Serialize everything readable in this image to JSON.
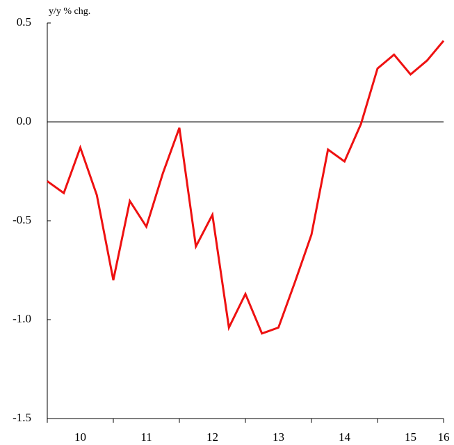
{
  "chart_data": {
    "type": "line",
    "y_axis_label": "y/y % chg.",
    "x": [
      10,
      10.25,
      10.5,
      10.75,
      11,
      11.25,
      11.5,
      11.75,
      12,
      12.25,
      12.5,
      12.75,
      13,
      13.25,
      13.5,
      13.75,
      14,
      14.25,
      14.5,
      14.75,
      15,
      15.25,
      15.5,
      15.75,
      16
    ],
    "series": [
      {
        "color": "#ee1111",
        "values": [
          -0.3,
          -0.36,
          -0.13,
          -0.37,
          -0.8,
          -0.4,
          -0.53,
          -0.26,
          -0.03,
          -0.63,
          -0.47,
          -1.04,
          -0.87,
          -1.07,
          -1.04,
          -0.81,
          -0.57,
          -0.14,
          -0.2,
          -0.01,
          0.27,
          0.34,
          0.24,
          0.31,
          0.41
        ]
      }
    ],
    "xlim": [
      10,
      16
    ],
    "xticks": [
      10,
      11,
      12,
      13,
      14,
      15,
      16
    ],
    "xlabels": [
      {
        "value": 10.5,
        "label": "10"
      },
      {
        "value": 11.5,
        "label": "11"
      },
      {
        "value": 12.5,
        "label": "12"
      },
      {
        "value": 13.5,
        "label": "13"
      },
      {
        "value": 14.5,
        "label": "14"
      },
      {
        "value": 15.5,
        "label": "15"
      },
      {
        "value": 16,
        "label": "16"
      }
    ],
    "ylim": [
      -1.5,
      0.5
    ],
    "yticks": [
      {
        "value": 0.5,
        "label": "0.5"
      },
      {
        "value": 0,
        "label": "0.0"
      },
      {
        "value": -0.5,
        "label": "-0.5"
      },
      {
        "value": -1,
        "label": "-1.0"
      },
      {
        "value": -1.5,
        "label": "-1.5"
      }
    ],
    "zero_line": 0
  }
}
